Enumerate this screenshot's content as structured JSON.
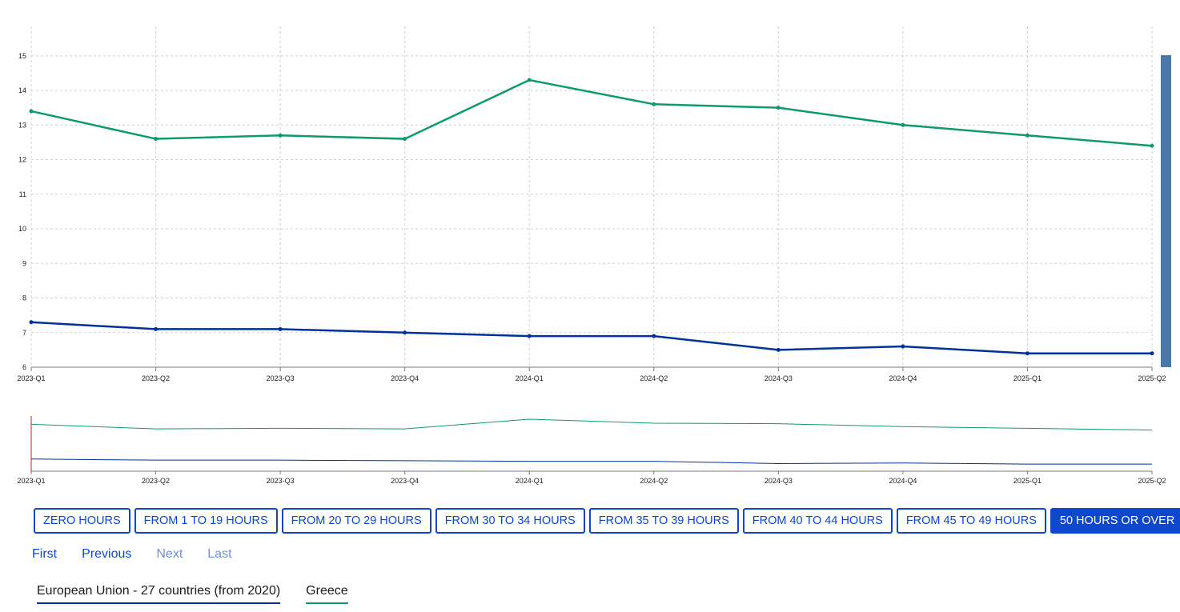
{
  "chart_data": {
    "type": "line",
    "categories": [
      "2023-Q1",
      "2023-Q2",
      "2023-Q3",
      "2023-Q4",
      "2024-Q1",
      "2024-Q2",
      "2024-Q3",
      "2024-Q4",
      "2025-Q1",
      "2025-Q2"
    ],
    "series": [
      {
        "name": "European Union - 27 countries (from 2020)",
        "color": "#003399",
        "values": [
          7.3,
          7.1,
          7.1,
          7.0,
          6.9,
          6.9,
          6.5,
          6.6,
          6.4,
          6.4
        ]
      },
      {
        "name": "Greece",
        "color": "#0e9a6a",
        "values": [
          13.4,
          12.6,
          12.7,
          12.6,
          14.3,
          13.6,
          13.5,
          13.0,
          12.7,
          12.4
        ]
      }
    ],
    "yticks": [
      6,
      7,
      8,
      9,
      10,
      11,
      12,
      13,
      14,
      15
    ],
    "ylim": [
      6,
      15.85
    ],
    "grid": true,
    "title": "",
    "xlabel": "",
    "ylabel": ""
  },
  "buttons": [
    {
      "label": "ZERO HOURS",
      "active": false
    },
    {
      "label": "FROM 1 TO 19 HOURS",
      "active": false
    },
    {
      "label": "FROM 20 TO 29 HOURS",
      "active": false
    },
    {
      "label": "FROM 30 TO 34 HOURS",
      "active": false
    },
    {
      "label": "FROM 35 TO 39 HOURS",
      "active": false
    },
    {
      "label": "FROM 40 TO 44 HOURS",
      "active": false
    },
    {
      "label": "FROM 45 TO 49 HOURS",
      "active": false
    },
    {
      "label": "50 HOURS OR OVER",
      "active": true
    }
  ],
  "pager": {
    "first": "First",
    "previous": "Previous",
    "next": "Next",
    "last": "Last"
  },
  "legend": {
    "eu": "European Union - 27 countries (from 2020)",
    "greece": "Greece"
  },
  "colors": {
    "eu": "#003399",
    "greece": "#0e9a6a",
    "accent": "#0e47cb",
    "scrollbar": "#4a76a8"
  }
}
